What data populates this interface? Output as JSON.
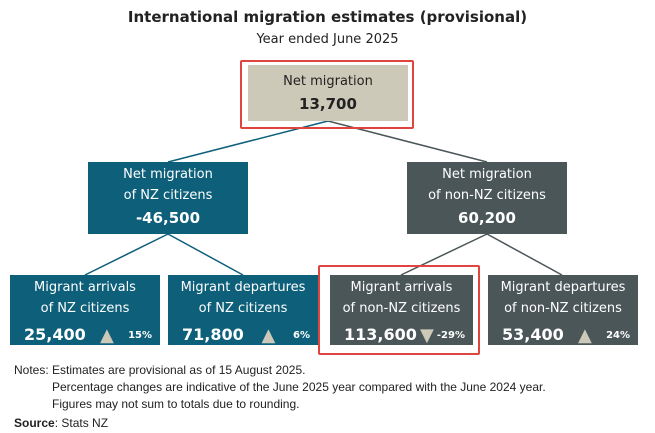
{
  "title": "International migration estimates (provisional)",
  "subtitle": "Year ended June 2025",
  "net": {
    "label": "Net migration",
    "value": "13,700"
  },
  "nz": {
    "label1": "Net migration",
    "label2": "of NZ citizens",
    "value": "-46,500"
  },
  "nonnz": {
    "label1": "Net migration",
    "label2": "of non-NZ citizens",
    "value": "60,200"
  },
  "leaves": [
    {
      "label1": "Migrant arrivals",
      "label2": "of NZ citizens",
      "value": "25,400",
      "arrow": "▲",
      "pct": "15%"
    },
    {
      "label1": "Migrant departures",
      "label2": "of NZ citizens",
      "value": "71,800",
      "arrow": "▲",
      "pct": "6%"
    },
    {
      "label1": "Migrant arrivals",
      "label2": "of non-NZ citizens",
      "value": "113,600",
      "arrow": "▼",
      "pct": "-29%"
    },
    {
      "label1": "Migrant departures",
      "label2": "of non-NZ citizens",
      "value": "53,400",
      "arrow": "▲",
      "pct": "24%"
    }
  ],
  "notes": {
    "prefix": "Notes:",
    "lines": [
      "Estimates are provisional as of 15 August 2025.",
      "Percentage changes are indicative of the June 2025 year compared with the June 2024 year.",
      "Figures may not sum to totals due to rounding."
    ]
  },
  "source": {
    "label": "Source",
    "text": ": Stats NZ"
  },
  "colors": {
    "nz": "#0d5f7a",
    "nonnz": "#4b5659",
    "top": "#cdc9b8",
    "highlight": "#e0443e"
  }
}
